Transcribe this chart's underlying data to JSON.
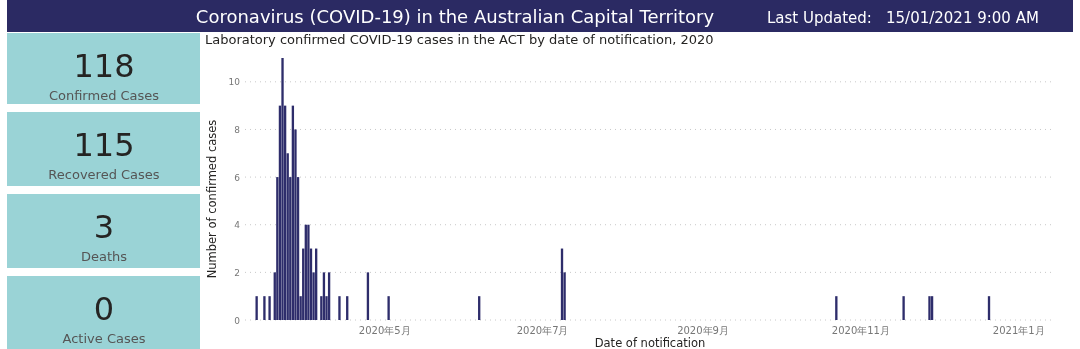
{
  "chart_data": [
    {
      "type": "other",
      "title": "Coronavirus (COVID-19) in the Australian Capital Territory",
      "annotations": [
        "Last Updated:",
        "15/01/2021 9:00 AM",
        "118",
        "Confirmed Cases",
        "115",
        "Recovered Cases",
        "3",
        "Deaths",
        "0",
        "Active Cases"
      ]
    },
    {
      "type": "bar",
      "title": "Laboratory confirmed COVID-19 cases in the ACT by date of notification, 2020",
      "xlabel": "Date of notification",
      "ylabel": "Number of confirmed cases",
      "x": [
        "2020-03-12",
        "2020-03-15",
        "2020-03-17",
        "2020-03-19",
        "2020-03-20",
        "2020-03-21",
        "2020-03-22",
        "2020-03-23",
        "2020-03-24",
        "2020-03-25",
        "2020-03-26",
        "2020-03-27",
        "2020-03-28",
        "2020-03-29",
        "2020-03-30",
        "2020-03-31",
        "2020-04-01",
        "2020-04-02",
        "2020-04-03",
        "2020-04-04",
        "2020-04-06",
        "2020-04-07",
        "2020-04-08",
        "2020-04-09",
        "2020-04-13",
        "2020-04-16",
        "2020-04-24",
        "2020-05-02",
        "2020-06-06",
        "2020-07-08",
        "2020-07-09",
        "2020-10-22",
        "2020-11-17",
        "2020-11-27",
        "2020-11-28",
        "2020-12-20"
      ],
      "values": [
        1,
        1,
        1,
        2,
        6,
        9,
        11,
        9,
        7,
        6,
        9,
        8,
        6,
        1,
        3,
        4,
        4,
        3,
        2,
        3,
        1,
        2,
        1,
        2,
        1,
        1,
        2,
        1,
        1,
        3,
        2,
        1,
        1,
        1,
        1,
        1
      ],
      "color": "#2e2d6b",
      "xlim": [
        "2020-03-08",
        "2021-01-15"
      ],
      "xticks": [
        {
          "value": "2020-05-01",
          "label": "2020年5月"
        },
        {
          "value": "2020-07-01",
          "label": "2020年7月"
        },
        {
          "value": "2020-09-01",
          "label": "2020年9月"
        },
        {
          "value": "2020-11-01",
          "label": "2020年11月"
        },
        {
          "value": "2021-01-01",
          "label": "2021年1月"
        }
      ],
      "ylim": [
        0,
        11
      ],
      "yticks": [
        0,
        2,
        4,
        6,
        8,
        10
      ],
      "grid": "y"
    }
  ]
}
